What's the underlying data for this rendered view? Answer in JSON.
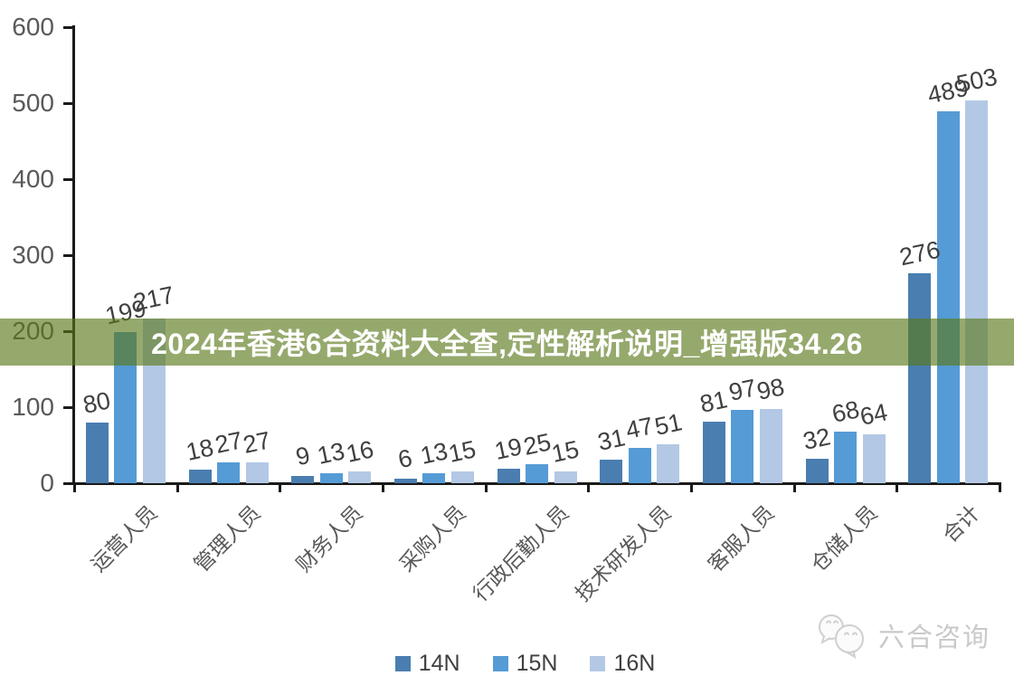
{
  "chart_data": {
    "type": "bar",
    "categories": [
      "运营人员",
      "管理人员",
      "财务人员",
      "采购人员",
      "行政后勤人员",
      "技术研发人员",
      "客服人员",
      "仓储人员",
      "合计"
    ],
    "series": [
      {
        "name": "14N",
        "color": "#4A7EB0",
        "values": [
          80,
          18,
          9,
          6,
          19,
          31,
          81,
          32,
          276
        ]
      },
      {
        "name": "15N",
        "color": "#559BD6",
        "values": [
          199,
          27,
          13,
          13,
          25,
          47,
          97,
          68,
          489
        ]
      },
      {
        "name": "16N",
        "color": "#B3C8E5",
        "values": [
          217,
          27,
          16,
          15,
          15,
          51,
          98,
          64,
          503
        ]
      }
    ],
    "title": "",
    "xlabel": "",
    "ylabel": "",
    "ylim": [
      0,
      600
    ],
    "yticks": [
      0,
      100,
      200,
      300,
      400,
      500,
      600
    ],
    "grid": false,
    "legend_position": "bottom",
    "axis_color": "#1a1a1a",
    "tick_label_color": "#595959",
    "value_label_color": "#404040"
  },
  "banner": {
    "text": "2024年香港6合资料大全查,定性解析说明_增强版34.26",
    "overlay_color_rgba": "rgba(91,121,27,0.64)",
    "text_color": "#ffffff"
  },
  "watermark": {
    "text": "六合咨询",
    "icon": "chat-bubbles-icon",
    "color": "#c9c9c9"
  }
}
